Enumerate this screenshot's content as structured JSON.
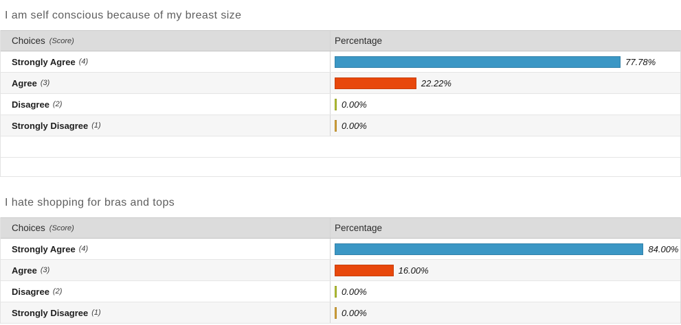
{
  "page": {
    "background": "#ffffff"
  },
  "sections": [
    {
      "title": "I am self conscious because of my breast size",
      "header": {
        "choices": "Choices",
        "score": "(Score)",
        "percentage": "Percentage"
      },
      "rows": [
        {
          "label": "Strongly Agree",
          "score": "(4)",
          "value": 77.78,
          "display": "77.78%",
          "color": "#3b97c5"
        },
        {
          "label": "Agree",
          "score": "(3)",
          "value": 22.22,
          "display": "22.22%",
          "color": "#e8480c"
        },
        {
          "label": "Disagree",
          "score": "(2)",
          "value": 0,
          "display": "0.00%",
          "color": "#b5c234"
        },
        {
          "label": "Strongly Disagree",
          "score": "(1)",
          "value": 0,
          "display": "0.00%",
          "color": "#d6a43a"
        }
      ],
      "empty_rows": 2
    },
    {
      "title": "I hate shopping for bras and tops",
      "header": {
        "choices": "Choices",
        "score": "(Score)",
        "percentage": "Percentage"
      },
      "rows": [
        {
          "label": "Strongly Agree",
          "score": "(4)",
          "value": 84.0,
          "display": "84.00%",
          "color": "#3b97c5"
        },
        {
          "label": "Agree",
          "score": "(3)",
          "value": 16.0,
          "display": "16.00%",
          "color": "#e8480c"
        },
        {
          "label": "Disagree",
          "score": "(2)",
          "value": 0,
          "display": "0.00%",
          "color": "#b5c234"
        },
        {
          "label": "Strongly Disagree",
          "score": "(1)",
          "value": 0,
          "display": "0.00%",
          "color": "#d6a43a"
        }
      ],
      "empty_rows": 0
    }
  ],
  "chart_data": [
    {
      "type": "bar",
      "orientation": "horizontal",
      "title": "I am self conscious because of my breast size",
      "categories": [
        "Strongly Agree (4)",
        "Agree (3)",
        "Disagree (2)",
        "Strongly Disagree (1)"
      ],
      "values": [
        77.78,
        22.22,
        0.0,
        0.0
      ],
      "value_labels": [
        "77.78%",
        "22.22%",
        "0.00%",
        "0.00%"
      ],
      "xlabel": "Percentage",
      "ylabel": "Choices (Score)",
      "xlim": [
        0,
        100
      ],
      "grid": false,
      "legend": false,
      "bar_colors": [
        "#3b97c5",
        "#e8480c",
        "#b5c234",
        "#d6a43a"
      ]
    },
    {
      "type": "bar",
      "orientation": "horizontal",
      "title": "I hate shopping for bras and tops",
      "categories": [
        "Strongly Agree (4)",
        "Agree (3)",
        "Disagree (2)",
        "Strongly Disagree (1)"
      ],
      "values": [
        84.0,
        16.0,
        0.0,
        0.0
      ],
      "value_labels": [
        "84.00%",
        "16.00%",
        "0.00%",
        "0.00%"
      ],
      "xlabel": "Percentage",
      "ylabel": "Choices (Score)",
      "xlim": [
        0,
        100
      ],
      "grid": false,
      "legend": false,
      "bar_colors": [
        "#3b97c5",
        "#e8480c",
        "#b5c234",
        "#d6a43a"
      ]
    }
  ]
}
